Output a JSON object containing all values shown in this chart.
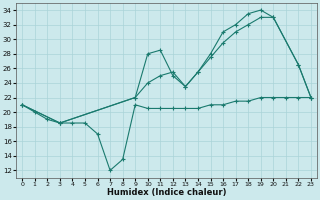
{
  "xlabel": "Humidex (Indice chaleur)",
  "bg_color": "#cce9ec",
  "line_color": "#1a7a6e",
  "grid_color": "#aad4d8",
  "xlim": [
    -0.5,
    23.5
  ],
  "ylim": [
    11,
    35
  ],
  "yticks": [
    12,
    14,
    16,
    18,
    20,
    22,
    24,
    26,
    28,
    30,
    32,
    34
  ],
  "xticks": [
    0,
    1,
    2,
    3,
    4,
    5,
    6,
    7,
    8,
    9,
    10,
    11,
    12,
    13,
    14,
    15,
    16,
    17,
    18,
    19,
    20,
    21,
    22,
    23
  ],
  "line_dip_x": [
    0,
    1,
    2,
    3,
    4,
    5,
    6,
    7,
    8,
    9,
    10,
    11,
    12,
    13,
    14,
    15,
    16,
    17,
    18,
    19,
    20,
    21,
    22,
    23
  ],
  "line_dip_y": [
    21,
    20,
    19,
    18.5,
    18.5,
    18.5,
    17,
    12,
    13.5,
    21,
    20.5,
    20.5,
    20.5,
    20.5,
    20.5,
    21,
    21,
    21.5,
    21.5,
    22,
    22,
    22,
    22,
    22
  ],
  "line_mid_x": [
    0,
    3,
    9,
    10,
    11,
    12,
    13,
    14,
    15,
    16,
    17,
    18,
    19,
    20,
    22,
    23
  ],
  "line_mid_y": [
    21,
    18.5,
    22,
    24,
    25,
    25.5,
    23.5,
    25.5,
    27.5,
    29.5,
    31,
    32,
    33,
    33,
    26.5,
    22
  ],
  "line_top_x": [
    0,
    3,
    9,
    10,
    11,
    12,
    13,
    14,
    15,
    16,
    17,
    18,
    19,
    20,
    22,
    23
  ],
  "line_top_y": [
    21,
    18.5,
    22,
    28,
    28.5,
    25,
    23.5,
    25.5,
    28,
    31,
    32,
    33.5,
    34,
    33,
    26.5,
    22
  ]
}
